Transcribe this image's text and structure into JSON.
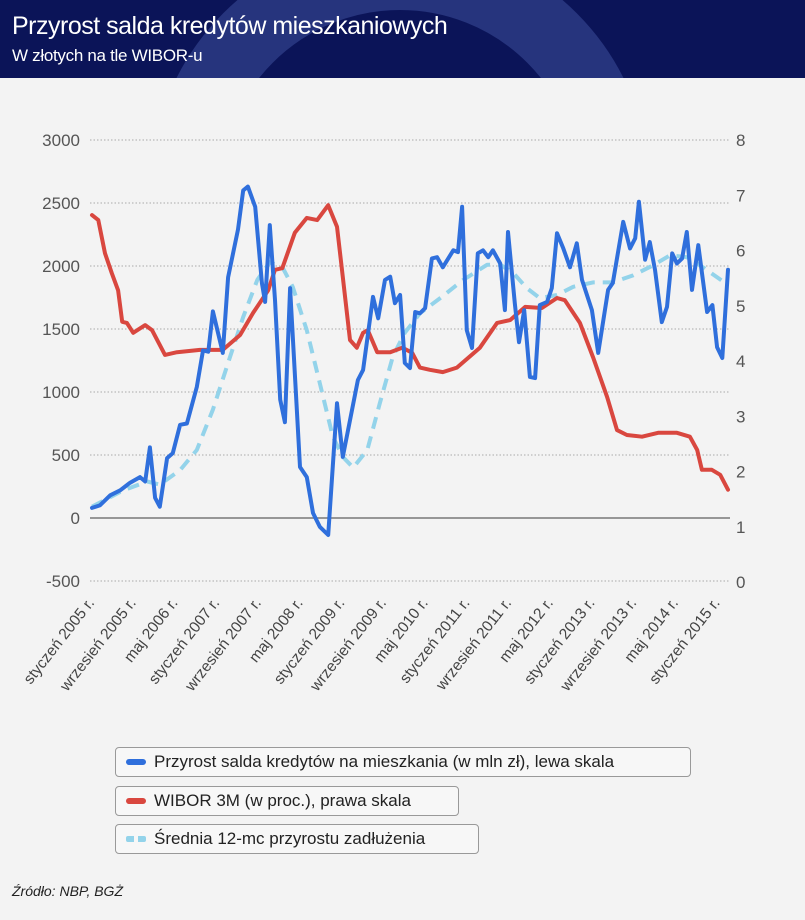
{
  "header": {
    "title": "Przyrost salda kredytów mieszkaniowych",
    "subtitle": "W złotych na tle WIBOR-u"
  },
  "chart_data": {
    "type": "line",
    "title": "Przyrost salda kredytów mieszkaniowych",
    "subtitle": "W złotych na tle WIBOR-u",
    "x_unit": "months since styczeń 2005",
    "xlim": [
      0,
      122
    ],
    "x_tick_labels": [
      "styczeń 2005 r.",
      "wrzesień 2005 r.",
      "maj 2006 r.",
      "styczeń 2007 r.",
      "wrzesień 2007 r.",
      "maj 2008 r.",
      "styczeń 2009 r.",
      "wrzesień 2009 r.",
      "maj 2010 r.",
      "styczeń 2011 r.",
      "wrzesień 2011 r.",
      "maj 2012 r.",
      "styczeń 2013 r.",
      "wrzesień 2013 r.",
      "maj 2014 r.",
      "styczeń 2015 r."
    ],
    "x_tick_positions": [
      0,
      8,
      16,
      24,
      32,
      40,
      48,
      56,
      64,
      72,
      80,
      88,
      96,
      104,
      112,
      120
    ],
    "y_left": {
      "ylim": [
        -500,
        3000
      ],
      "ticks": [
        "3000",
        "2500",
        "2000",
        "1500",
        "1000",
        "500",
        "0",
        "-500"
      ],
      "tick_values": [
        3000,
        2500,
        2000,
        1500,
        1000,
        500,
        0,
        -500
      ]
    },
    "y_right": {
      "ylim": [
        0,
        8
      ],
      "ticks": [
        "8",
        "7",
        "6",
        "5",
        "4",
        "3",
        "2",
        "1",
        "0"
      ],
      "tick_values": [
        8,
        7,
        6,
        5,
        4,
        3,
        2,
        1,
        0
      ]
    },
    "grid": true,
    "legend_position": "bottom",
    "series": [
      {
        "name": "Przyrost salda kredytów na mieszkania (w mln zł), lewa skala",
        "axis": "left",
        "color": "#2f6fdc",
        "style": "solid",
        "points": [
          [
            0,
            80
          ],
          [
            1.5,
            100
          ],
          [
            3.5,
            180
          ],
          [
            5.4,
            220
          ],
          [
            7.3,
            280
          ],
          [
            9.2,
            325
          ],
          [
            10.2,
            290
          ],
          [
            11.1,
            560
          ],
          [
            12.1,
            160
          ],
          [
            13,
            90
          ],
          [
            14.4,
            475
          ],
          [
            15.5,
            515
          ],
          [
            16.9,
            740
          ],
          [
            18.2,
            750
          ],
          [
            20.1,
            1040
          ],
          [
            21.3,
            1330
          ],
          [
            22.3,
            1320
          ],
          [
            23.2,
            1640
          ],
          [
            25.1,
            1310
          ],
          [
            26.1,
            1910
          ],
          [
            28,
            2290
          ],
          [
            29,
            2600
          ],
          [
            29.9,
            2630
          ],
          [
            31.3,
            2470
          ],
          [
            32.6,
            1865
          ],
          [
            33.2,
            1715
          ],
          [
            34.1,
            2325
          ],
          [
            35.1,
            1730
          ],
          [
            36.1,
            940
          ],
          [
            37,
            760
          ],
          [
            38,
            1825
          ],
          [
            39.9,
            405
          ],
          [
            41.2,
            325
          ],
          [
            42.4,
            40
          ],
          [
            43.7,
            -70
          ],
          [
            45.3,
            -135
          ],
          [
            47,
            910
          ],
          [
            48.1,
            485
          ],
          [
            51,
            1095
          ],
          [
            52,
            1175
          ],
          [
            53.9,
            1755
          ],
          [
            54.9,
            1585
          ],
          [
            56.2,
            1890
          ],
          [
            57.2,
            1915
          ],
          [
            58.1,
            1705
          ],
          [
            59.1,
            1770
          ],
          [
            60,
            1230
          ],
          [
            61,
            1190
          ],
          [
            62,
            1635
          ],
          [
            62.9,
            1625
          ],
          [
            63.9,
            1665
          ],
          [
            65.2,
            2060
          ],
          [
            66.2,
            2070
          ],
          [
            67.3,
            1990
          ],
          [
            69.3,
            2125
          ],
          [
            70.2,
            2110
          ],
          [
            71,
            2470
          ],
          [
            71.9,
            1490
          ],
          [
            72.9,
            1350
          ],
          [
            74,
            2100
          ],
          [
            75,
            2125
          ],
          [
            76,
            2070
          ],
          [
            76.9,
            2125
          ],
          [
            78.3,
            2020
          ],
          [
            79.2,
            1650
          ],
          [
            79.8,
            2270
          ],
          [
            81.1,
            1705
          ],
          [
            81.9,
            1395
          ],
          [
            82.9,
            1650
          ],
          [
            84,
            1120
          ],
          [
            85,
            1110
          ],
          [
            85.9,
            1690
          ],
          [
            87.3,
            1715
          ],
          [
            88.2,
            1825
          ],
          [
            89.2,
            2260
          ],
          [
            90.4,
            2140
          ],
          [
            91.7,
            1990
          ],
          [
            93,
            2180
          ],
          [
            94,
            1890
          ],
          [
            95.9,
            1650
          ],
          [
            97.1,
            1310
          ],
          [
            99,
            1810
          ],
          [
            99.9,
            1865
          ],
          [
            101.9,
            2350
          ],
          [
            103.2,
            2140
          ],
          [
            104.2,
            2220
          ],
          [
            104.9,
            2510
          ],
          [
            106.1,
            2050
          ],
          [
            107,
            2190
          ],
          [
            108,
            1970
          ],
          [
            109.3,
            1555
          ],
          [
            110.3,
            1675
          ],
          [
            111.3,
            2100
          ],
          [
            112.2,
            2020
          ],
          [
            113.2,
            2060
          ],
          [
            114.1,
            2270
          ],
          [
            115.1,
            1810
          ],
          [
            116.3,
            2165
          ],
          [
            118,
            1635
          ],
          [
            119,
            1690
          ],
          [
            119.9,
            1355
          ],
          [
            120.9,
            1270
          ],
          [
            122,
            1970
          ]
        ]
      },
      {
        "name": "WIBOR 3M (w proc.), prawa skala",
        "axis": "right",
        "color": "#d9473f",
        "style": "solid",
        "points": [
          [
            0,
            6.64
          ],
          [
            1.2,
            6.55
          ],
          [
            2.5,
            5.95
          ],
          [
            3.8,
            5.59
          ],
          [
            5,
            5.28
          ],
          [
            5.8,
            4.71
          ],
          [
            6.7,
            4.69
          ],
          [
            7.9,
            4.51
          ],
          [
            10.2,
            4.65
          ],
          [
            11.5,
            4.56
          ],
          [
            14,
            4.11
          ],
          [
            16.3,
            4.16
          ],
          [
            20.7,
            4.2
          ],
          [
            25.1,
            4.2
          ],
          [
            28.4,
            4.47
          ],
          [
            30.9,
            4.87
          ],
          [
            33.8,
            5.28
          ],
          [
            35.1,
            5.65
          ],
          [
            36.5,
            5.68
          ],
          [
            38.9,
            6.32
          ],
          [
            41.2,
            6.59
          ],
          [
            43.2,
            6.55
          ],
          [
            45.3,
            6.82
          ],
          [
            47,
            6.43
          ],
          [
            48.1,
            5.52
          ],
          [
            49.5,
            4.38
          ],
          [
            50.8,
            4.24
          ],
          [
            52,
            4.51
          ],
          [
            52.9,
            4.56
          ],
          [
            54.7,
            4.16
          ],
          [
            57.2,
            4.16
          ],
          [
            59.5,
            4.24
          ],
          [
            61.4,
            4.15
          ],
          [
            62.9,
            3.88
          ],
          [
            64.8,
            3.84
          ],
          [
            67.3,
            3.8
          ],
          [
            70,
            3.88
          ],
          [
            74.4,
            4.24
          ],
          [
            77.7,
            4.69
          ],
          [
            80.2,
            4.74
          ],
          [
            83.1,
            4.98
          ],
          [
            86.3,
            4.96
          ],
          [
            89.2,
            5.14
          ],
          [
            90.7,
            5.1
          ],
          [
            93.6,
            4.69
          ],
          [
            96.1,
            4.07
          ],
          [
            98.8,
            3.35
          ],
          [
            100.7,
            2.75
          ],
          [
            102.6,
            2.66
          ],
          [
            105.5,
            2.63
          ],
          [
            108.6,
            2.7
          ],
          [
            112.2,
            2.7
          ],
          [
            114.7,
            2.63
          ],
          [
            116.1,
            2.39
          ],
          [
            117,
            2.03
          ],
          [
            118.9,
            2.03
          ],
          [
            120.5,
            1.94
          ],
          [
            122,
            1.67
          ]
        ]
      },
      {
        "name": "Średnia 12-mc przyrostu zadłużenia",
        "axis": "left",
        "color": "#93d3ea",
        "style": "dashed",
        "points": [
          [
            0,
            90
          ],
          [
            6,
            220
          ],
          [
            10.6,
            290
          ],
          [
            13,
            265
          ],
          [
            16.9,
            380
          ],
          [
            20.1,
            540
          ],
          [
            23.2,
            860
          ],
          [
            26.5,
            1280
          ],
          [
            29,
            1595
          ],
          [
            31.7,
            1890
          ],
          [
            34.1,
            2030
          ],
          [
            36.6,
            1985
          ],
          [
            38.5,
            1835
          ],
          [
            41.2,
            1490
          ],
          [
            43.7,
            1070
          ],
          [
            46.2,
            645
          ],
          [
            48.1,
            485
          ],
          [
            50.1,
            400
          ],
          [
            52.8,
            540
          ],
          [
            55.2,
            910
          ],
          [
            57.7,
            1280
          ],
          [
            60,
            1470
          ],
          [
            62.9,
            1625
          ],
          [
            66.8,
            1745
          ],
          [
            71.2,
            1890
          ],
          [
            75.8,
            2010
          ],
          [
            78.3,
            2010
          ],
          [
            80.8,
            1945
          ],
          [
            83.4,
            1825
          ],
          [
            85.9,
            1745
          ],
          [
            89.2,
            1770
          ],
          [
            92.3,
            1835
          ],
          [
            96.1,
            1870
          ],
          [
            99.9,
            1870
          ],
          [
            103.8,
            1925
          ],
          [
            107.6,
            2005
          ],
          [
            110.9,
            2085
          ],
          [
            114.1,
            2070
          ],
          [
            117.2,
            1990
          ],
          [
            119.9,
            1910
          ],
          [
            122,
            1850
          ]
        ]
      }
    ]
  },
  "legend": [
    {
      "label": "Przyrost salda kredytów na mieszkania (w mln zł), lewa skala",
      "color": "#2f6fdc"
    },
    {
      "label": "WIBOR 3M (w proc.), prawa skala",
      "color": "#d9473f"
    },
    {
      "label": "Średnia 12-mc przyrostu zadłużenia",
      "color": "#93d3ea"
    }
  ],
  "source": "Źródło: NBP, BGŻ"
}
